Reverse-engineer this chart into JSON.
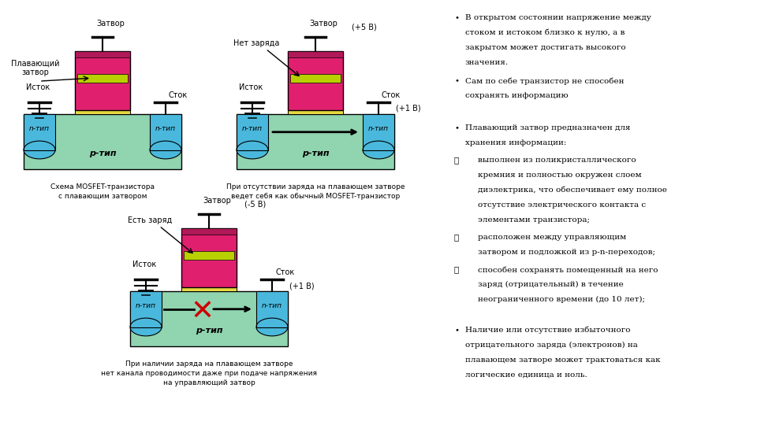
{
  "bg_color": "#ffffff",
  "colors": {
    "substrate_p": "#90d4b0",
    "n_type": "#4ab8dc",
    "gate_pink": "#e0206e",
    "floating_gate": "#b8d000",
    "gate_yellow": "#e8d840",
    "gate_dark": "#b01858",
    "wire": "#000000",
    "cross_red": "#cc0000"
  },
  "text": {
    "diagram1_caption_l1": "Схема MOSFET-транзистора",
    "diagram1_caption_l2": "с плавающим затвором",
    "diagram2_caption_l1": "При отсутствии заряда на плавающем затворе",
    "diagram2_caption_l2": "ведет себя как обычный MOSFET-транзистор",
    "diagram3_caption_l1": "При наличии заряда на плавающем затворе",
    "diagram3_caption_l2": "нет канала проводимости даже при подаче напряжения",
    "diagram3_caption_l3": "на управляющий затвор",
    "bullet1_l1": "В открытом состоянии напряжение между",
    "bullet1_l2": "стоком и истоком близко к нулю, а в",
    "bullet1_l3": "закрытом может достигать высокого",
    "bullet1_l4": "значения.",
    "bullet2_l1": "Сам по себе транзистор не способен",
    "bullet2_l2": "сохранять информацию",
    "bullet3_l1": "Плавающий затвор предназначен для",
    "bullet3_l2": "хранения информации:",
    "check1_l1": "выполнен из поликристаллического",
    "check1_l2": "кремния и полностью окружен слоем",
    "check1_l3": "диэлектрика, что обеспечивает ему полное",
    "check1_l4": "отсутствие электрического контакта с",
    "check1_l5": "элементами транзистора;",
    "check2_l1": "расположен между управляющим",
    "check2_l2": "затвором и подложкой из p-n-переходов;",
    "check3_l1": "способен сохранять помещенный на него",
    "check3_l2": "заряд (отрицательный) в течение",
    "check3_l3": "неограниченного времени (до 10 лет);",
    "bullet4_l1": "Наличие или отсутствие избыточного",
    "bullet4_l2": "отрицательного заряда (электронов) на",
    "bullet4_l3": "плавающем затворе может трактоваться как",
    "bullet4_l4": "логические единица и ноль."
  }
}
